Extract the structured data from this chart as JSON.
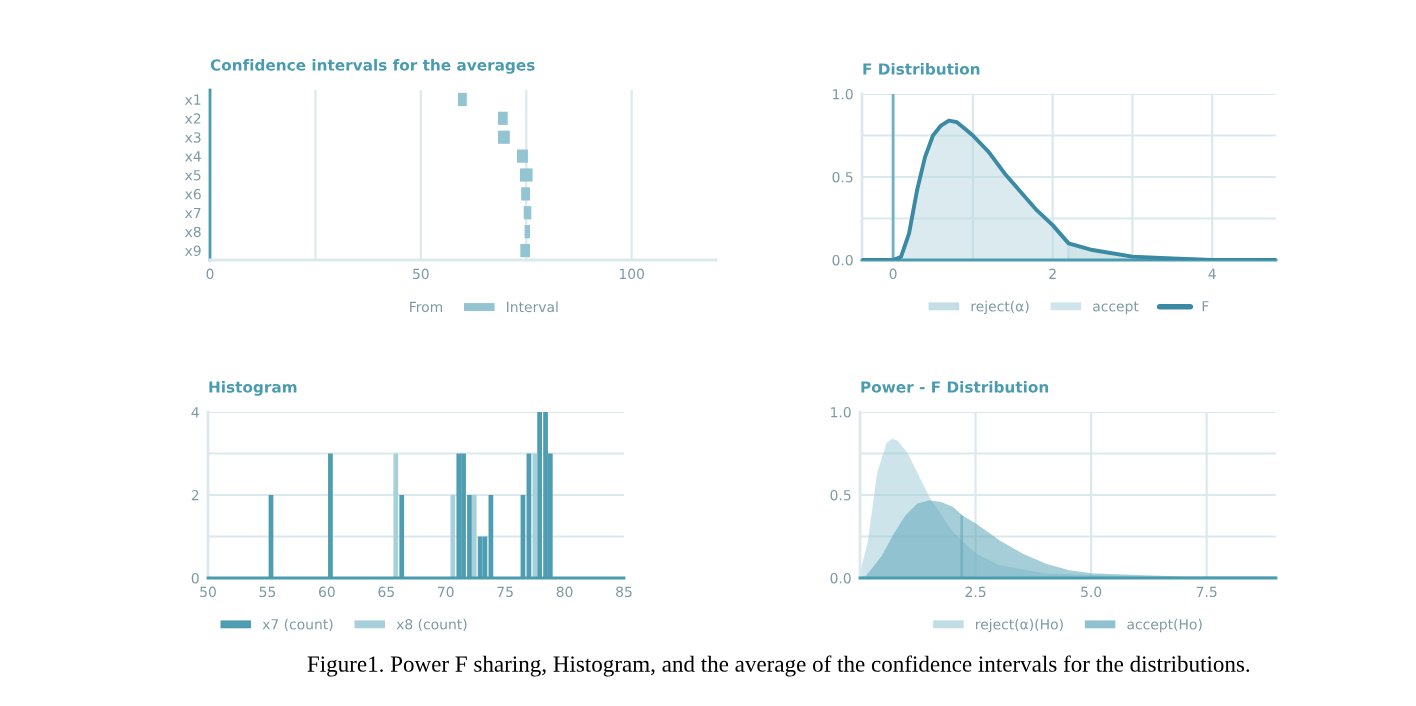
{
  "chart_data": [
    {
      "type": "bar",
      "orientation": "horizontal",
      "legend_title": "From",
      "title": "Confidence intervals for the averages",
      "categories": [
        "x1",
        "x2",
        "x3",
        "x4",
        "x5",
        "x6",
        "x7",
        "x8",
        "x9"
      ],
      "series": [
        {
          "name": "Interval",
          "color": "#93c4d1",
          "base": [
            58.8,
            68.3,
            68.3,
            72.8,
            73.5,
            73.8,
            74.4,
            74.6,
            73.6
          ],
          "values": [
            2.1,
            2.3,
            2.8,
            2.6,
            3.0,
            2.1,
            1.8,
            1.3,
            2.3
          ]
        }
      ],
      "xlim": [
        0,
        120
      ],
      "xticks": [
        0,
        {
          "value": 25,
          "label": null
        },
        50,
        {
          "value": 75,
          "label": null
        },
        100
      ],
      "grid": "x",
      "legend": "bottom",
      "annotations": [
        "Figure1. Power F sharing, Histogram, and the average of the confidence intervals for the distributions."
      ]
    },
    {
      "type": "area",
      "title": "F Distribution",
      "series": [
        {
          "name": "reject(α)",
          "color": "#a9d0da",
          "x": [
            2.2,
            2.5,
            3.0,
            3.5,
            4.0,
            4.8
          ],
          "values": [
            0.1,
            0.06,
            0.02,
            0.01,
            0,
            0
          ]
        },
        {
          "name": "accept",
          "color": "#bcdae2",
          "x": [
            -0.39,
            0,
            0.1,
            0.2,
            0.3,
            0.4,
            0.5,
            0.6,
            0.7,
            0.8,
            0.9,
            1.0,
            1.2,
            1.4,
            1.6,
            1.8,
            2.0,
            2.2
          ],
          "values": [
            0,
            0,
            0.02,
            0.16,
            0.42,
            0.62,
            0.75,
            0.81,
            0.84,
            0.83,
            0.79,
            0.75,
            0.65,
            0.52,
            0.41,
            0.3,
            0.21,
            0.1
          ]
        },
        {
          "name": "F",
          "type": "line",
          "color": "#3a8aa3",
          "x": [
            -0.39,
            0,
            0.1,
            0.2,
            0.3,
            0.4,
            0.5,
            0.6,
            0.7,
            0.8,
            0.9,
            1.0,
            1.2,
            1.4,
            1.6,
            1.8,
            2.0,
            2.2,
            2.5,
            3.0,
            3.5,
            4.0,
            4.8
          ],
          "values": [
            0,
            0,
            0.02,
            0.16,
            0.42,
            0.62,
            0.75,
            0.81,
            0.84,
            0.83,
            0.79,
            0.75,
            0.65,
            0.52,
            0.41,
            0.3,
            0.21,
            0.1,
            0.06,
            0.02,
            0.01,
            0,
            0
          ]
        }
      ],
      "xlim": [
        -0.39,
        4.8
      ],
      "xticks": [
        0,
        {
          "value": 1,
          "label": null
        },
        2,
        {
          "value": 3,
          "label": null
        },
        4
      ],
      "ylim": [
        0,
        1.0
      ],
      "yticks": [
        {
          "value": 0,
          "label": "0.0"
        },
        {
          "value": 0.25,
          "label": null
        },
        {
          "value": 0.5,
          "label": "0.5"
        },
        {
          "value": 0.75,
          "label": null
        },
        {
          "value": 1.0,
          "label": "1.0"
        }
      ],
      "grid": true,
      "legend": "bottom",
      "ref_lines": [
        {
          "axis": "x",
          "value": 0,
          "color": "#6fb0c1"
        }
      ]
    },
    {
      "type": "bar",
      "title": "Histogram",
      "series": [
        {
          "name": "x7 (count)",
          "color": "#4f9db0",
          "x": [
            55.3,
            60.3,
            66.3,
            71.1,
            71.5,
            72.0,
            72.9,
            73.3,
            73.8,
            76.5,
            77.0,
            77.9,
            78.4,
            78.8
          ],
          "values": [
            2,
            3,
            2,
            3,
            3,
            2,
            1,
            1,
            2,
            2,
            3,
            4,
            4,
            3
          ]
        },
        {
          "name": "x8 (count)",
          "color": "#a8d0da",
          "x": [
            65.8,
            70.6,
            72.4,
            77.5
          ],
          "values": [
            3,
            2,
            2,
            3
          ]
        }
      ],
      "xlim": [
        50,
        85
      ],
      "xticks": [
        50,
        55,
        60,
        65,
        70,
        75,
        80,
        85
      ],
      "ylim": [
        0,
        4
      ],
      "yticks": [
        0,
        {
          "value": 1,
          "label": null
        },
        2,
        {
          "value": 3,
          "label": null
        },
        4
      ],
      "grid": "y",
      "legend": "bottom left"
    },
    {
      "type": "area",
      "title": "Power - F Distribution",
      "series": [
        {
          "name": "reject(α)(Ho)",
          "color": "#a6cfd9",
          "x": [
            0,
            0.2,
            0.4,
            0.6,
            0.7,
            0.8,
            1.0,
            1.5,
            2.0,
            2.5,
            3.0,
            4.0,
            5.0,
            6.0,
            9.0
          ],
          "values": [
            0,
            0.22,
            0.63,
            0.81,
            0.83,
            0.82,
            0.75,
            0.47,
            0.27,
            0.14,
            0.07,
            0.02,
            0.01,
            0,
            0
          ]
        },
        {
          "name": "accept(Ho)",
          "color": "#5fa7b9",
          "x": [
            0,
            0.13,
            0.5,
            0.75,
            1.0,
            1.25,
            1.5,
            1.75,
            2.0,
            2.2
          ],
          "values": [
            0,
            0,
            0.13,
            0.26,
            0.37,
            0.44,
            0.46,
            0.45,
            0.42,
            0.37
          ]
        },
        {
          "color": "#5fa7b9",
          "x": [
            2.2,
            2.5,
            3.0,
            3.5,
            4.0,
            4.5,
            5.0,
            6.0,
            7.0,
            9.0
          ],
          "values": [
            0.37,
            0.32,
            0.22,
            0.14,
            0.08,
            0.04,
            0.02,
            0.01,
            0,
            0
          ]
        }
      ],
      "xlim": [
        0,
        9
      ],
      "xticks": [
        2.5,
        {
          "value": 5,
          "label": "5.0"
        },
        7.5
      ],
      "ylim": [
        0,
        1.0
      ],
      "yticks": [
        {
          "value": 0,
          "label": "0.0"
        },
        {
          "value": 0.25,
          "label": null
        },
        {
          "value": 0.5,
          "label": "0.5"
        },
        {
          "value": 0.75,
          "label": null
        },
        {
          "value": 1.0,
          "label": "1.0"
        }
      ],
      "grid": true,
      "legend": "bottom"
    }
  ]
}
